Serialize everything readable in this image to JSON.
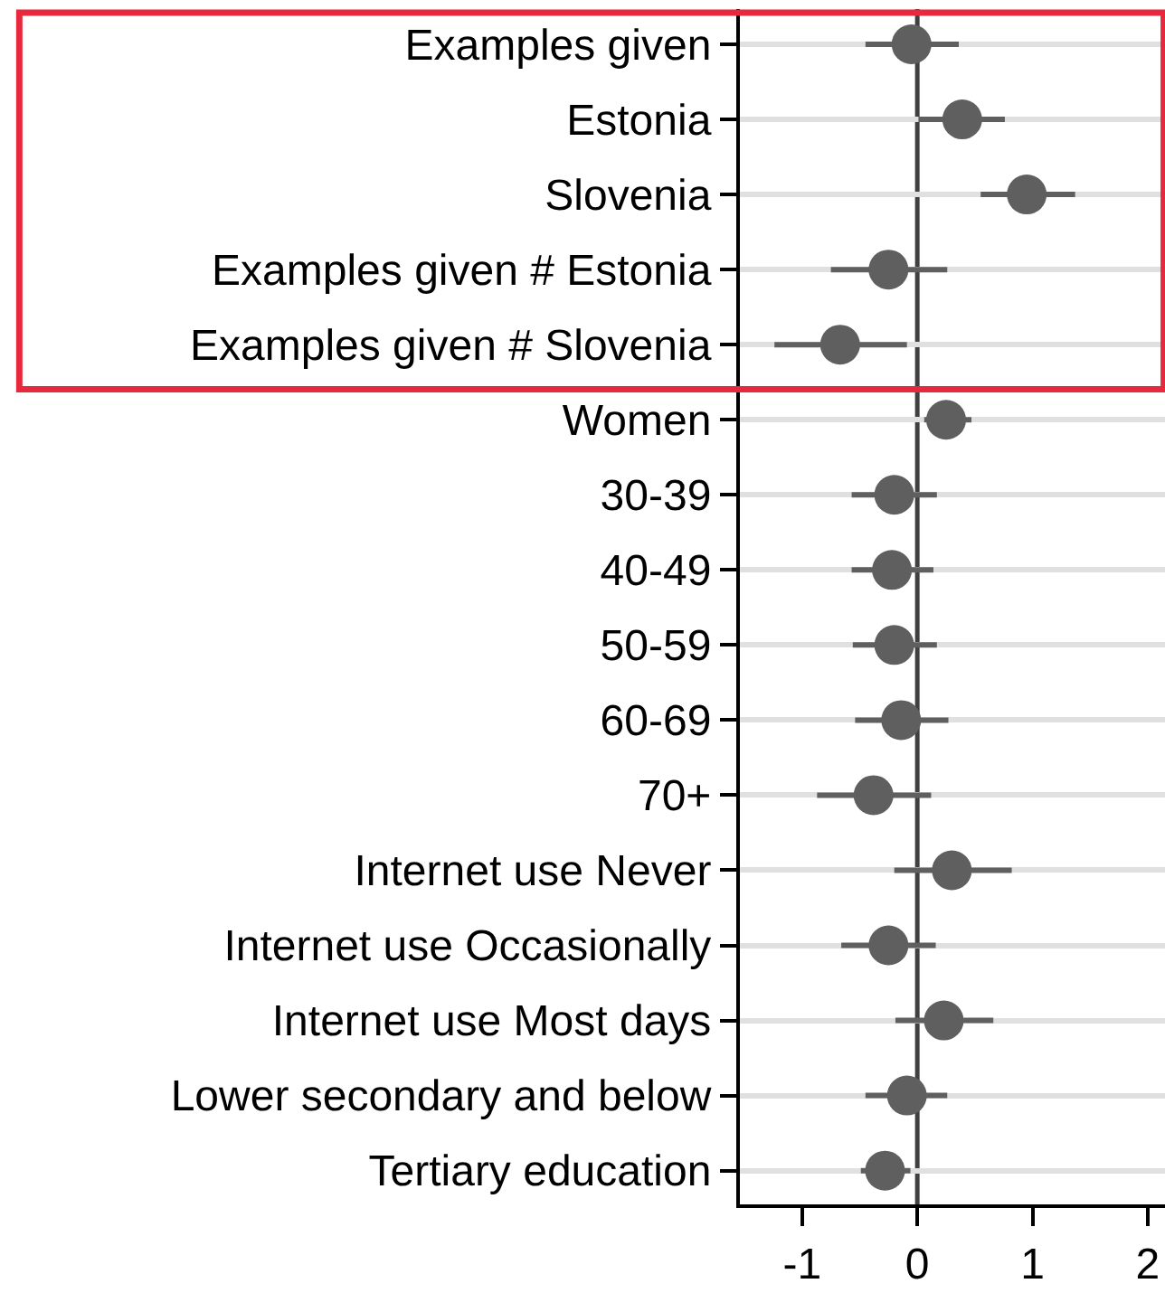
{
  "chart_data": {
    "type": "scatter",
    "orientation": "horizontal",
    "categories": [
      "Examples given",
      "Estonia",
      "Slovenia",
      "Examples given # Estonia",
      "Examples given # Slovenia",
      "Women",
      "30-39",
      "40-49",
      "50-59",
      "60-69",
      "70+",
      "Internet use Never",
      "Internet use Occasionally",
      "Internet use Most days",
      "Lower secondary and below",
      "Tertiary education"
    ],
    "series": [
      {
        "color": "#5f5f5f",
        "values": [
          -0.05,
          0.39,
          0.95,
          -0.25,
          -0.67,
          0.25,
          -0.2,
          -0.22,
          -0.2,
          -0.14,
          -0.38,
          0.3,
          -0.25,
          0.23,
          -0.09,
          -0.28
        ],
        "errors": [
          [
            -0.45,
            0.36
          ],
          [
            0.01,
            0.76
          ],
          [
            0.55,
            1.37
          ],
          [
            -0.75,
            0.26
          ],
          [
            -1.24,
            -0.09
          ],
          [
            0.06,
            0.47
          ],
          [
            -0.57,
            0.17
          ],
          [
            -0.57,
            0.14
          ],
          [
            -0.56,
            0.17
          ],
          [
            -0.54,
            0.27
          ],
          [
            -0.87,
            0.12
          ],
          [
            -0.2,
            0.82
          ],
          [
            -0.66,
            0.16
          ],
          [
            -0.19,
            0.66
          ],
          [
            -0.45,
            0.26
          ],
          [
            -0.49,
            -0.06
          ]
        ]
      }
    ],
    "xlim": [
      -1.54,
      2.15
    ],
    "xticks": [
      -1,
      0,
      1,
      2
    ],
    "ref_lines": [
      {
        "axis": "x",
        "value": 0,
        "color": "#404040"
      }
    ],
    "grid": "y",
    "marker": "circle"
  }
}
